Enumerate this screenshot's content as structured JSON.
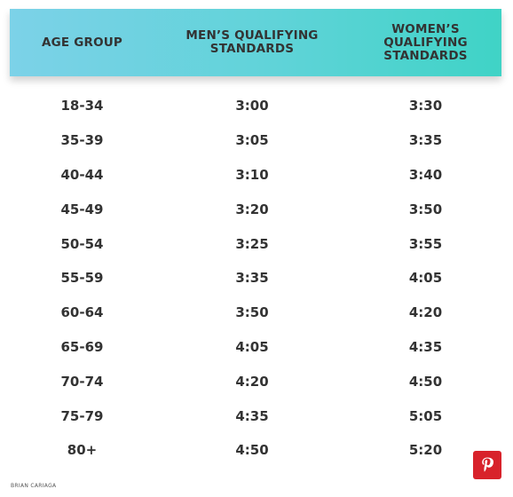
{
  "table": {
    "headers": {
      "age_group": "AGE GROUP",
      "men": "MEN’S QUALIFYING\nSTANDARDS",
      "women": "WOMEN’S QUALIFYING\nSTANDARDS"
    },
    "rows": [
      {
        "age": "18-34",
        "men": "3:00",
        "women": "3:30"
      },
      {
        "age": "35-39",
        "men": "3:05",
        "women": "3:35"
      },
      {
        "age": "40-44",
        "men": "3:10",
        "women": "3:40"
      },
      {
        "age": "45-49",
        "men": "3:20",
        "women": "3:50"
      },
      {
        "age": "50-54",
        "men": "3:25",
        "women": "3:55"
      },
      {
        "age": "55-59",
        "men": "3:35",
        "women": "4:05"
      },
      {
        "age": "60-64",
        "men": "3:50",
        "women": "4:20"
      },
      {
        "age": "65-69",
        "men": "4:05",
        "women": "4:35"
      },
      {
        "age": "70-74",
        "men": "4:20",
        "women": "4:50"
      },
      {
        "age": "75-79",
        "men": "4:35",
        "women": "5:05"
      },
      {
        "age": "80+",
        "men": "4:50",
        "women": "5:20"
      }
    ]
  },
  "credit": "BRIAN CARIAGA",
  "share": {
    "icon": "pinterest-icon",
    "color": "#d8222b"
  },
  "colors": {
    "header_start": "#7cd2e8",
    "header_end": "#3fd3c6",
    "text": "#333333"
  }
}
